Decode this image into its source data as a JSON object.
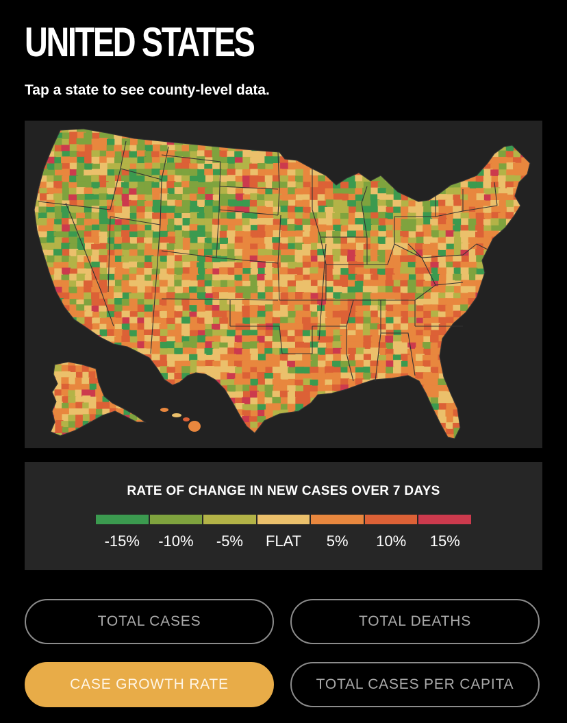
{
  "header": {
    "title": "UNITED STATES",
    "subtitle": "Tap a state to see county-level data."
  },
  "legend": {
    "title": "RATE OF CHANGE IN NEW CASES OVER 7 DAYS",
    "bins": [
      {
        "label": "-15%",
        "color": "#3b9a4f"
      },
      {
        "label": "-10%",
        "color": "#7fa33e"
      },
      {
        "label": "-5%",
        "color": "#b3b347"
      },
      {
        "label": "FLAT",
        "color": "#ebc06b"
      },
      {
        "label": "5%",
        "color": "#e8873e"
      },
      {
        "label": "10%",
        "color": "#dc6136"
      },
      {
        "label": "15%",
        "color": "#cc3a4d"
      }
    ]
  },
  "buttons": {
    "total_cases": "TOTAL CASES",
    "total_deaths": "TOTAL DEATHS",
    "case_growth_rate": "CASE GROWTH RATE",
    "total_cases_per_capita": "TOTAL CASES PER CAPITA",
    "active": "case_growth_rate"
  },
  "map": {
    "region": "United States",
    "background": "#222222",
    "county_colors": [
      "#3b9a4f",
      "#7fa33e",
      "#b3b347",
      "#ebc06b",
      "#e8873e",
      "#dc6136",
      "#cc3a4d"
    ]
  }
}
